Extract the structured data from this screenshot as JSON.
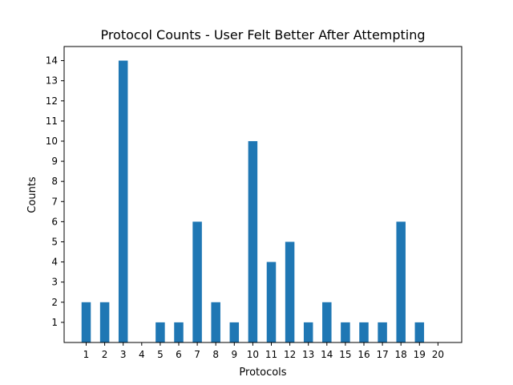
{
  "chart_data": {
    "type": "bar",
    "title": "Protocol Counts - User Felt Better After Attempting",
    "xlabel": "Protocols",
    "ylabel": "Counts",
    "categories": [
      "1",
      "2",
      "3",
      "4",
      "5",
      "6",
      "7",
      "8",
      "9",
      "10",
      "11",
      "12",
      "13",
      "14",
      "15",
      "16",
      "17",
      "18",
      "19",
      "20"
    ],
    "values": [
      2,
      2,
      14,
      0,
      1,
      1,
      6,
      2,
      1,
      10,
      4,
      5,
      1,
      2,
      1,
      1,
      1,
      6,
      1,
      0
    ],
    "yticks": [
      "1",
      "2",
      "3",
      "4",
      "5",
      "6",
      "7",
      "8",
      "9",
      "10",
      "11",
      "12",
      "13",
      "14"
    ],
    "ylim": [
      0,
      14.7
    ],
    "bar_color": "#1f77b4",
    "grid": false,
    "legend": "none"
  }
}
